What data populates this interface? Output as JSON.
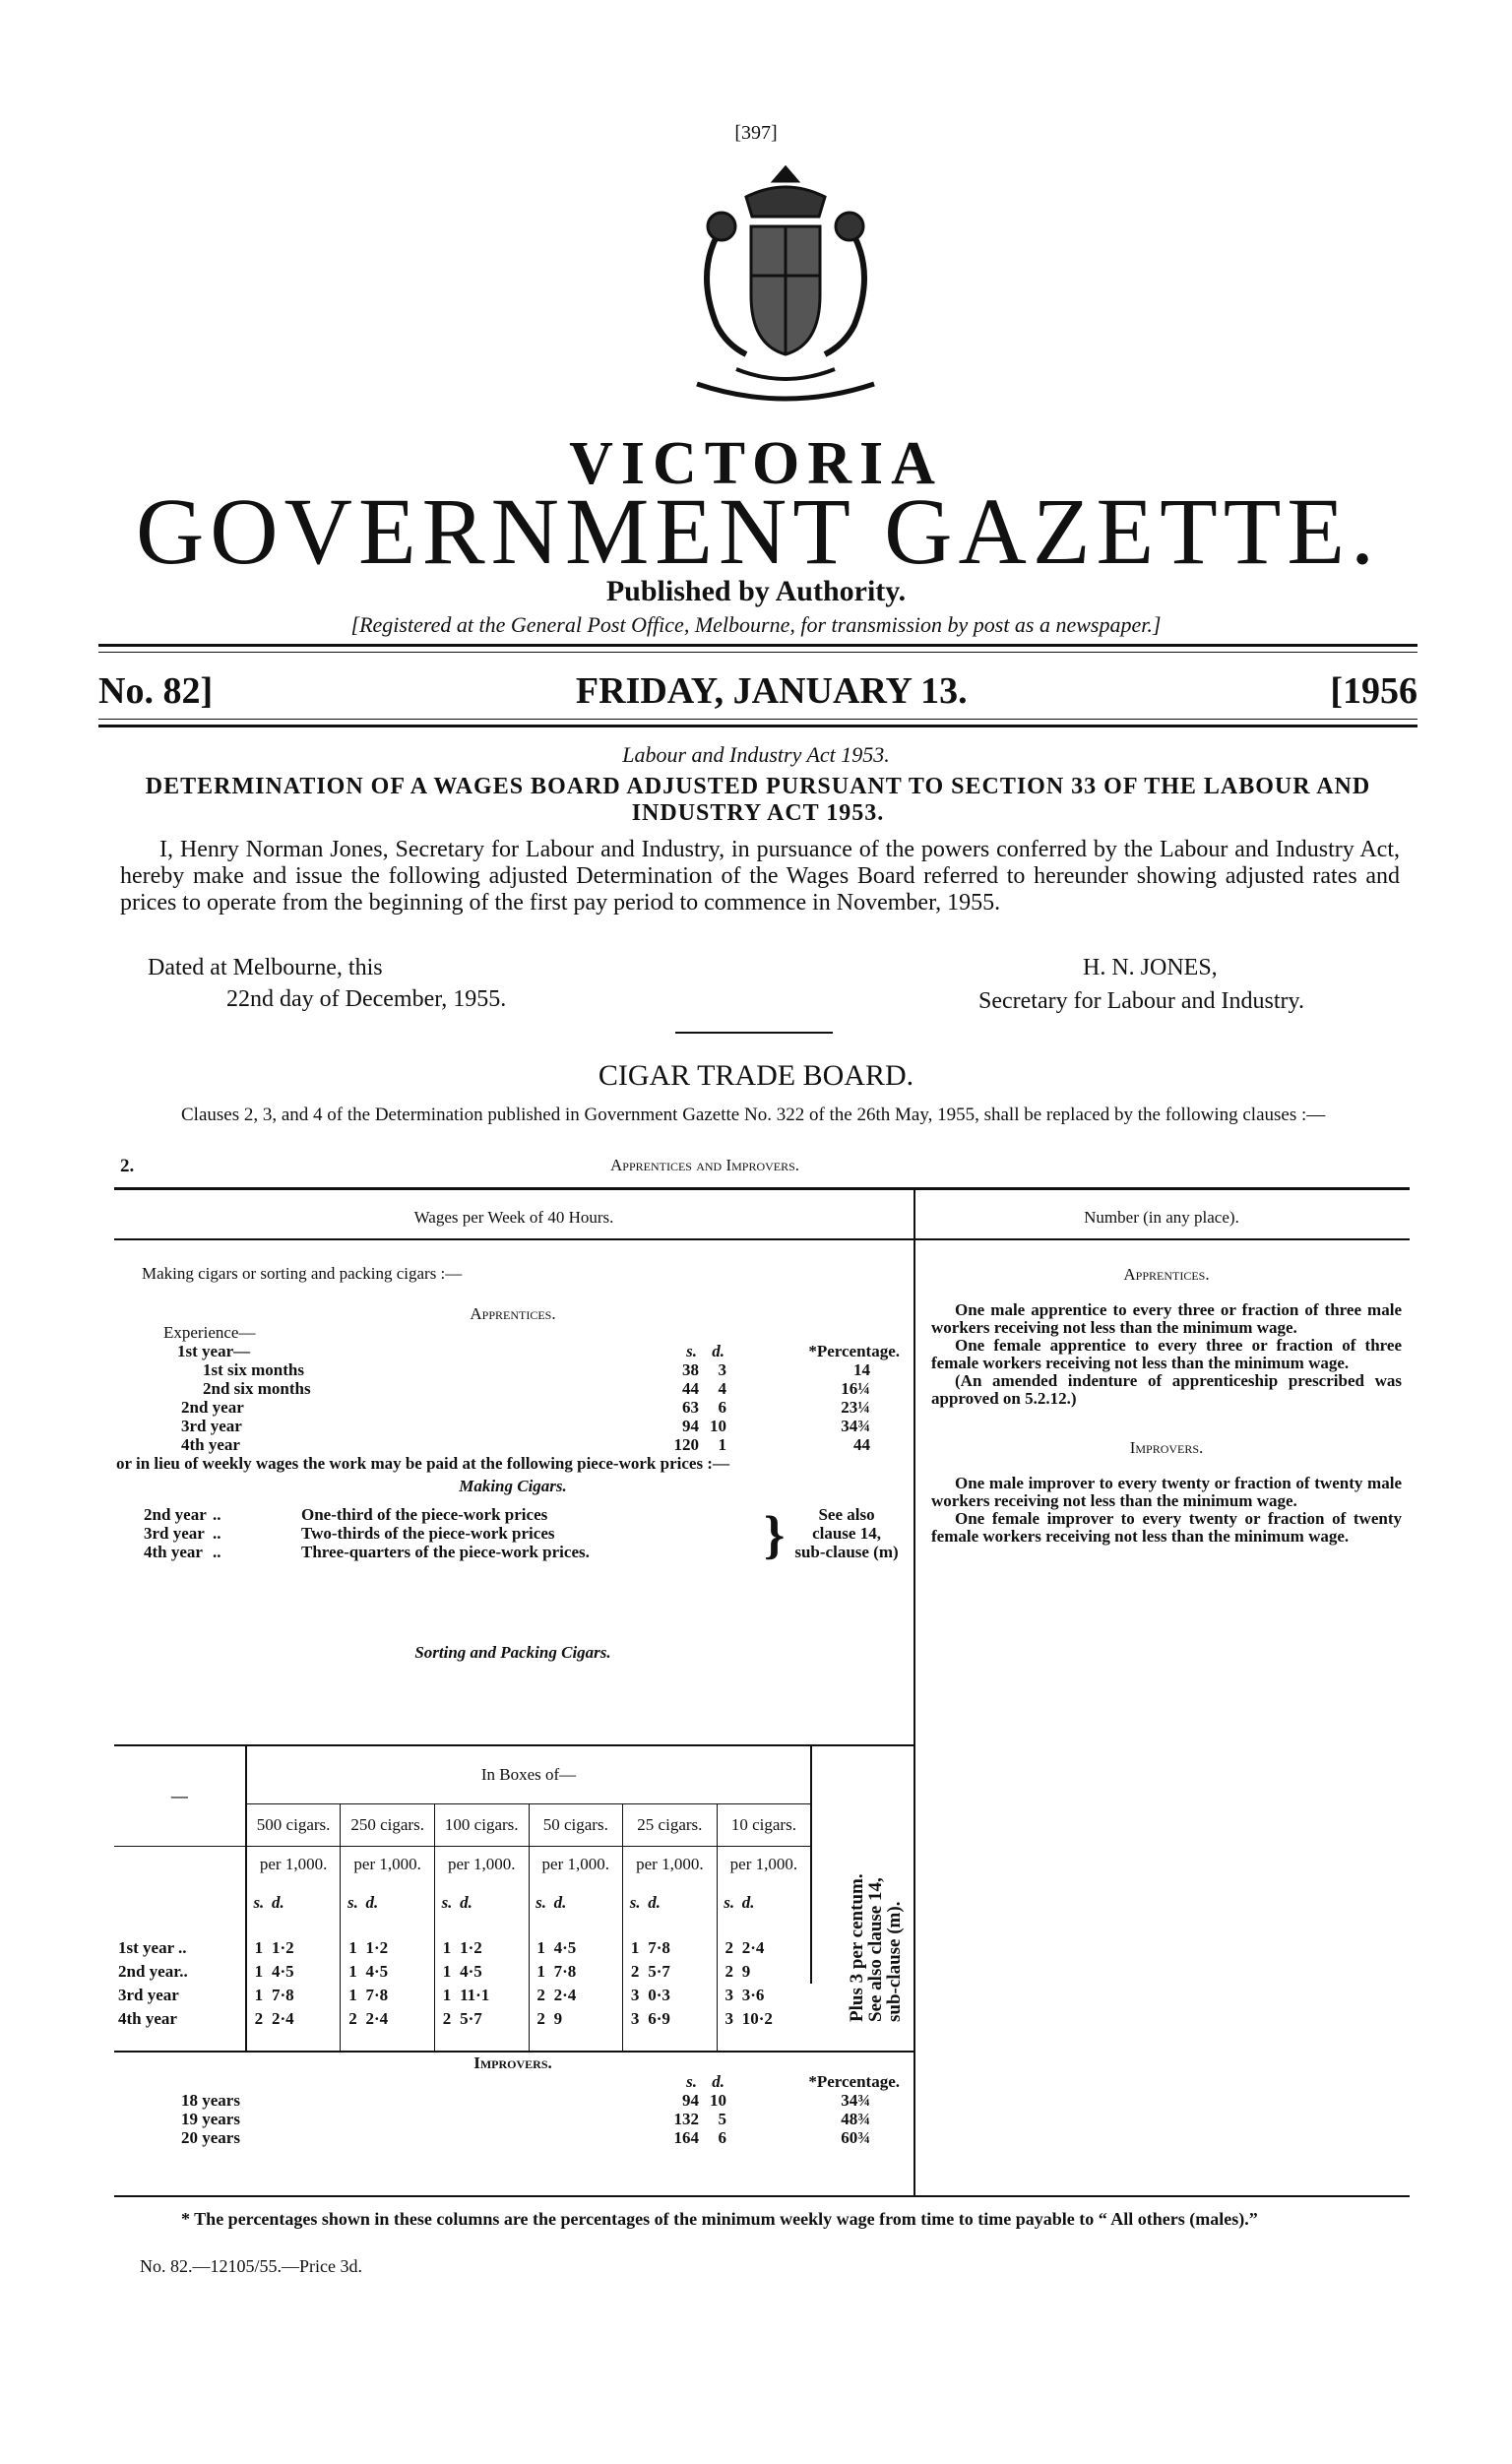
{
  "page_number": "[397]",
  "masthead": {
    "title_top": "VICTORIA",
    "title_main": "GOVERNMENT GAZETTE.",
    "subtitle": "Published by Authority.",
    "registration": "[Registered at the General Post Office, Melbourne, for transmission by post as a newspaper.]",
    "issue_no": "No. 82]",
    "date": "FRIDAY, JANUARY 13.",
    "year": "[1956"
  },
  "notice": {
    "act": "Labour and Industry Act 1953.",
    "heading": "DETERMINATION OF A WAGES BOARD ADJUSTED PURSUANT TO SECTION 33 OF THE LABOUR AND INDUSTRY ACT 1953.",
    "paragraph": "I, Henry Norman Jones, Secretary for Labour and Industry, in pursuance of the powers conferred by the Labour and Industry Act, hereby make and issue the following adjusted Determination of the Wages Board referred to hereunder showing adjusted rates and prices to operate from the beginning of the first pay period to commence in November, 1955.",
    "dated_line1": "Dated at Melbourne, this",
    "dated_line2": "22nd day of December, 1955.",
    "signatory": "H. N. JONES,",
    "signatory_title": "Secretary for Labour and Industry."
  },
  "board": {
    "title": "CIGAR TRADE BOARD.",
    "intro": "Clauses 2, 3, and 4 of the Determination published in Government Gazette No. 322 of the 26th May, 1955, shall be replaced by the following clauses :—",
    "clause_no": "2.",
    "clause_title": "Apprentices and Improvers.",
    "left_header": "Wages per Week of 40 Hours.",
    "right_header": "Number (in any place).",
    "making_intro": "Making cigars or sorting and packing cigars :—",
    "apprentices_title": "Apprentices.",
    "experience": "Experience—",
    "first_year": "1st year—",
    "col_s": "s.",
    "col_d": "d.",
    "col_pct": "*Percentage.",
    "apprentice_rows": [
      {
        "label": "1st six months",
        "s": "38",
        "d": "3",
        "pct": "14"
      },
      {
        "label": "2nd six months",
        "s": "44",
        "d": "4",
        "pct": "16¼"
      },
      {
        "label": "2nd year",
        "s": "63",
        "d": "6",
        "pct": "23¼"
      },
      {
        "label": "3rd year",
        "s": "94",
        "d": "10",
        "pct": "34¾"
      },
      {
        "label": "4th year",
        "s": "120",
        "d": "1",
        "pct": "44"
      }
    ],
    "piecework_intro": "or in lieu of weekly wages the work may be paid at the following piece-work prices :—",
    "making_cigars_title": "Making Cigars.",
    "making_rows": [
      {
        "label": "2nd year",
        "text": "One-third of the piece-work prices"
      },
      {
        "label": "3rd year",
        "text": "Two-thirds of the piece-work prices"
      },
      {
        "label": "4th year",
        "text": "Three-quarters of the piece-work prices."
      }
    ],
    "making_note": [
      "See also",
      "clause 14,",
      "sub-clause (m)"
    ],
    "sorting_title": "Sorting and Packing Cigars.",
    "boxes_header": "In Boxes of—",
    "dash": "—",
    "box_columns": [
      "500 cigars.",
      "250 cigars.",
      "100 cigars.",
      "50 cigars.",
      "25 cigars.",
      "10 cigars."
    ],
    "per_label": "per 1,000.",
    "box_rows": [
      {
        "label": "1st year ..",
        "values": [
          [
            "1",
            "1·2"
          ],
          [
            "1",
            "1·2"
          ],
          [
            "1",
            "1·2"
          ],
          [
            "1",
            "4·5"
          ],
          [
            "1",
            "7·8"
          ],
          [
            "2",
            "2·4"
          ]
        ]
      },
      {
        "label": "2nd year..",
        "values": [
          [
            "1",
            "4·5"
          ],
          [
            "1",
            "4·5"
          ],
          [
            "1",
            "4·5"
          ],
          [
            "1",
            "7·8"
          ],
          [
            "2",
            "5·7"
          ],
          [
            "2",
            "9"
          ]
        ]
      },
      {
        "label": "3rd year",
        "values": [
          [
            "1",
            "7·8"
          ],
          [
            "1",
            "7·8"
          ],
          [
            "1",
            "11·1"
          ],
          [
            "2",
            "2·4"
          ],
          [
            "3",
            "0·3"
          ],
          [
            "3",
            "3·6"
          ]
        ]
      },
      {
        "label": "4th year",
        "values": [
          [
            "2",
            "2·4"
          ],
          [
            "2",
            "2·4"
          ],
          [
            "2",
            "5·7"
          ],
          [
            "2",
            "9"
          ],
          [
            "3",
            "6·9"
          ],
          [
            "3",
            "10·2"
          ]
        ]
      }
    ],
    "box_note": [
      "Plus 3 per centum.",
      "See also clause 14,",
      "sub-clause (m)."
    ],
    "improvers_title": "Improvers.",
    "improver_rows": [
      {
        "label": "18 years",
        "s": "94",
        "d": "10",
        "pct": "34¾"
      },
      {
        "label": "19 years",
        "s": "132",
        "d": "5",
        "pct": "48¾"
      },
      {
        "label": "20 years",
        "s": "164",
        "d": "6",
        "pct": "60¾"
      }
    ],
    "right_apprentices_title": "Apprentices.",
    "right_apprentices": [
      "One male apprentice to every three or fraction of three male workers receiving not less than the minimum wage.",
      "One female apprentice to every three or fraction of three female workers receiving not less than the minimum wage.",
      "(An amended indenture of apprenticeship prescribed was approved on 5.2.12.)"
    ],
    "right_improvers_title": "Improvers.",
    "right_improvers": [
      "One male improver to every twenty or fraction of twenty male workers receiving not less than the minimum wage.",
      "One female improver to every twenty or fraction of twenty female workers receiving not less than the minimum wage."
    ],
    "footnote": "* The percentages shown in these columns are the percentages of the minimum weekly wage from time to time payable to “ All others (males).”",
    "price_line": "No. 82.—12105/55.—Price 3d."
  }
}
